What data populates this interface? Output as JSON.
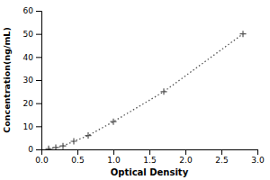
{
  "chart_data": {
    "type": "line",
    "x": [
      0.1,
      0.2,
      0.3,
      0.45,
      0.65,
      1.0,
      1.7,
      2.8
    ],
    "values": [
      0.3,
      0.8,
      1.5,
      3.5,
      6.0,
      12.0,
      25.0,
      50.0
    ],
    "x_label": "Optical Density",
    "y_label": "Concentration(ng/mL)",
    "xlim": [
      0,
      3
    ],
    "ylim": [
      0,
      60
    ],
    "xticks": [
      {
        "value": 0,
        "label": "0.0"
      },
      0.5,
      {
        "value": 1,
        "label": "1.0"
      },
      1.5,
      {
        "value": 2,
        "label": "2.0"
      },
      2.5,
      {
        "value": 3,
        "label": "3.0"
      }
    ],
    "yticks": [
      0,
      10,
      20,
      30,
      40,
      50,
      60
    ],
    "color": "#555555",
    "marker": "plus",
    "line_style": "dotted",
    "grid": false
  }
}
